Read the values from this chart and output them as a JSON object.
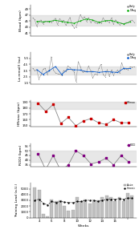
{
  "panel1": {
    "ylabel": "Blood (bpm)",
    "ylim": [
      40.0,
      50.5
    ],
    "yticks": [
      41,
      43,
      45,
      47,
      49
    ],
    "band": [
      43.5,
      47.0
    ],
    "legend": [
      "Daily",
      "T-Avg"
    ],
    "seed_daily": 10,
    "seed_training": 11,
    "n_daily": 50,
    "mean": 44.8,
    "std": 1.0
  },
  "panel2": {
    "ylabel": "La mmol/l (au)",
    "ylim": [
      1.3,
      6.5
    ],
    "yticks": [
      1.5,
      2.5,
      3.5,
      4.5,
      5.5
    ],
    "band": [
      2.8,
      4.2
    ],
    "legend": [
      "Daily",
      "T-Avg"
    ],
    "seed_daily": 20,
    "n_daily": 50,
    "mean": 3.4,
    "std": 0.55,
    "spikes_idx": [
      9,
      22,
      43
    ],
    "spikes_val": [
      5.8,
      5.0,
      4.8
    ]
  },
  "panel3": {
    "ylabel": "HRmax (bpm)",
    "ylim": [
      148,
      193
    ],
    "yticks": [
      150,
      160,
      170,
      180,
      190
    ],
    "band": [
      178,
      190
    ],
    "x": [
      1,
      2,
      3,
      4,
      5,
      6,
      7,
      8,
      9,
      10,
      11,
      12,
      13
    ],
    "y": [
      188,
      174,
      186,
      154,
      164,
      150,
      158,
      162,
      155,
      152,
      160,
      155,
      155
    ],
    "marker_color": "#cc0000",
    "legend": "HRmax"
  },
  "panel4": {
    "ylabel": "RODI (bpm)",
    "ylim": [
      33,
      58
    ],
    "yticks": [
      35,
      40,
      45,
      50,
      55
    ],
    "band": [
      38,
      50
    ],
    "x": [
      1,
      2,
      3,
      4,
      5,
      6,
      7,
      8,
      9,
      10,
      11,
      12,
      13
    ],
    "y": [
      47,
      30,
      45,
      29,
      35,
      50,
      45,
      36,
      38,
      42,
      35,
      45,
      38
    ],
    "marker_color": "#800080",
    "legend": "RODI"
  },
  "panel5": {
    "ylabel": "Training Load (a.U.)",
    "ylim": [
      0,
      6000
    ],
    "yticks": [
      0,
      1000,
      2000,
      3000,
      4000,
      5000
    ],
    "bar_x": [
      1,
      2,
      3,
      4,
      5,
      6,
      7,
      8,
      9,
      10,
      11,
      12,
      13,
      14,
      15,
      16,
      17,
      18,
      19,
      20,
      21,
      22,
      23,
      24
    ],
    "bar_heights": [
      5200,
      4800,
      700,
      200,
      3200,
      2800,
      3000,
      2000,
      1200,
      1300,
      3500,
      2800,
      3200,
      2500,
      2800,
      3000,
      3500,
      3800,
      3500,
      2800,
      3500,
      2800,
      4200,
      3800
    ],
    "chronic_x": [
      1,
      2,
      3,
      4,
      5,
      6,
      7,
      8,
      9,
      10,
      11,
      12,
      13,
      14,
      15,
      16,
      17,
      18,
      19,
      20,
      21,
      22,
      23,
      24
    ],
    "chronic_y": [
      3000,
      3200,
      2500,
      2200,
      2800,
      2600,
      2800,
      2700,
      2600,
      2600,
      2800,
      2800,
      3000,
      3000,
      3000,
      2800,
      3000,
      3200,
      3200,
      3200,
      3300,
      3200,
      3400,
      3400
    ],
    "week_ticks_pos": [
      2,
      5,
      8,
      11,
      14,
      17,
      20,
      23
    ],
    "week_ticks_labels": [
      "4",
      "6",
      "8",
      "10",
      "12",
      "14",
      "16",
      ""
    ],
    "xlabel": "Weeks",
    "legend": [
      "Acute",
      "Chronic"
    ]
  },
  "bg_band_color": "#d8d8d8",
  "bg_band_alpha": 0.6,
  "figsize": [
    1.73,
    2.92
  ],
  "dpi": 100
}
